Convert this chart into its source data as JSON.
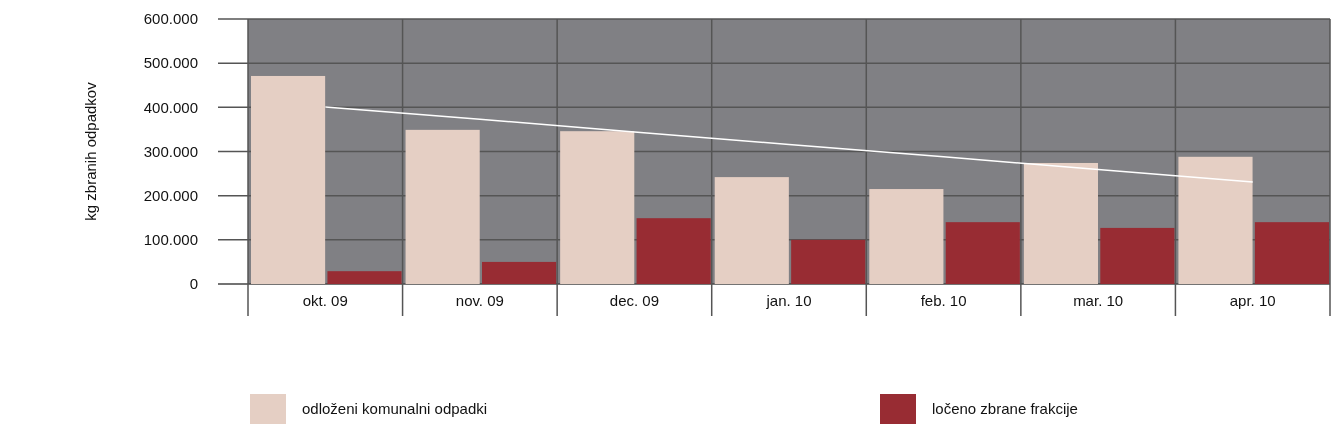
{
  "chart_data": {
    "type": "bar",
    "ylabel": "kg zbranih odpadkov",
    "categories": [
      "okt. 09",
      "nov. 09",
      "dec. 09",
      "jan. 10",
      "feb. 10",
      "mar. 10",
      "apr. 10"
    ],
    "series": [
      {
        "name": "odloženi komunalni odpadki",
        "color": "#e5cfc4",
        "values": [
          471000,
          349000,
          346000,
          242000,
          215000,
          274000,
          288000
        ]
      },
      {
        "name": "ločeno zbrane frakcije",
        "color": "#982c33",
        "values": [
          29000,
          50000,
          149000,
          100000,
          140000,
          127000,
          140000
        ]
      },
      {
        "type": "line",
        "color": "#ffffff",
        "values": [
          401000,
          373000,
          344000,
          316000,
          288000,
          259000,
          231000
        ]
      }
    ],
    "ylim": [
      0,
      600000
    ],
    "yticks": [
      {
        "value": 0,
        "label": "0"
      },
      {
        "value": 100000,
        "label": "100.000"
      },
      {
        "value": 200000,
        "label": "200.000"
      },
      {
        "value": 300000,
        "label": "300.000"
      },
      {
        "value": 400000,
        "label": "400.000"
      },
      {
        "value": 500000,
        "label": "500.000"
      },
      {
        "value": 600000,
        "label": "600.000"
      }
    ],
    "grid": true,
    "legend": "bottom"
  }
}
